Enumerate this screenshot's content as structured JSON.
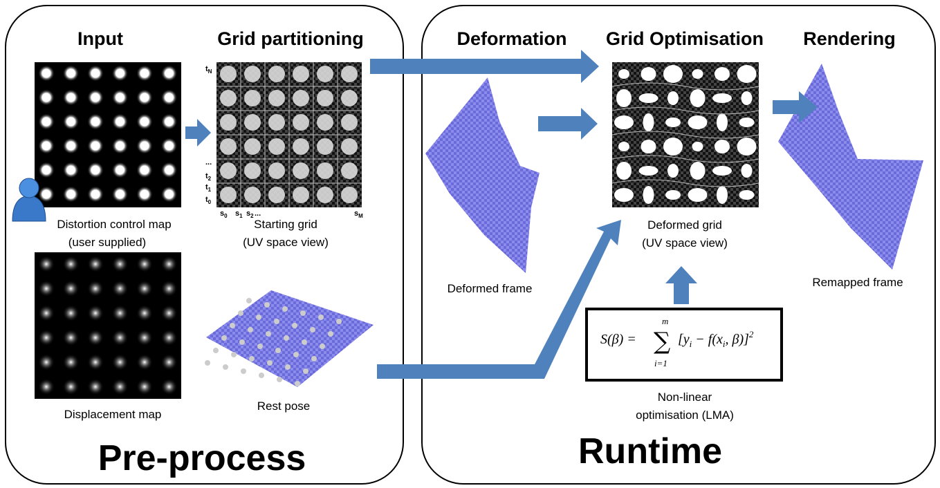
{
  "pre_process": {
    "title": "Pre-process",
    "input": {
      "heading": "Input",
      "caption": [
        "Distortion control map",
        "(user supplied)"
      ],
      "displacement_caption": "Displacement map"
    },
    "grid_partitioning": {
      "heading": "Grid partitioning",
      "caption": [
        "Starting grid",
        "(UV space view)"
      ],
      "rest_pose_caption": "Rest pose",
      "row_labels": [
        {
          "base": "t",
          "sub": "N"
        },
        {
          "base": "..."
        },
        {
          "base": "t",
          "sub": "2"
        },
        {
          "base": "t",
          "sub": "1"
        },
        {
          "base": "t",
          "sub": "0"
        }
      ],
      "column_labels": [
        {
          "base": "s",
          "sub": "0"
        },
        {
          "base": "s",
          "sub": "1"
        },
        {
          "base": "s",
          "sub": "2"
        },
        {
          "base": "..."
        },
        {
          "base": "s",
          "sub": "M"
        }
      ]
    }
  },
  "runtime": {
    "title": "Runtime",
    "deformation": {
      "heading": "Deformation",
      "caption": "Deformed frame"
    },
    "grid_optimisation": {
      "heading": "Grid Optimisation",
      "caption": [
        "Deformed grid",
        "(UV space view)"
      ],
      "formula": {
        "lhs": "S(β) = ",
        "sum": "∑",
        "upper": "m",
        "lower": "i=1",
        "body": [
          "[y",
          "i",
          " − f(x",
          "i",
          ",  β)]",
          "2"
        ]
      },
      "optimiser_caption": [
        "Non-linear",
        "optimisation (LMA)"
      ]
    },
    "rendering": {
      "heading": "Rendering",
      "caption": "Remapped frame"
    }
  }
}
